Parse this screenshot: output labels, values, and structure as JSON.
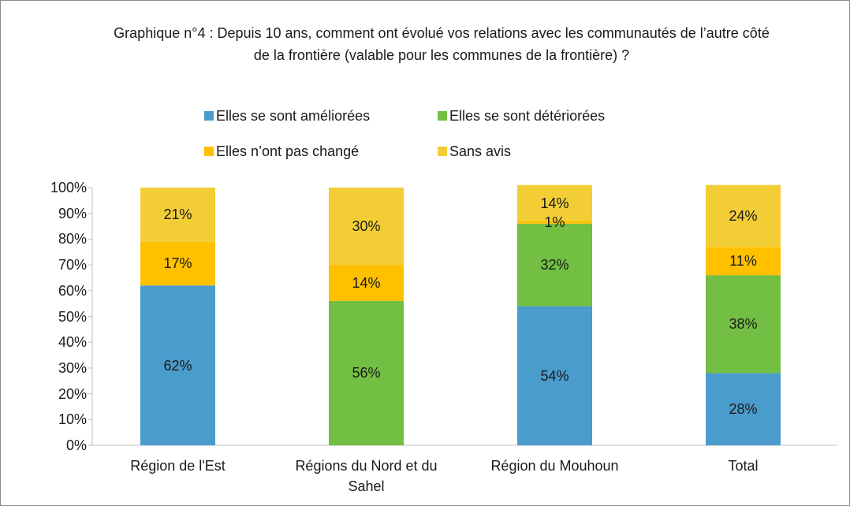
{
  "chart_data": {
    "type": "stacked_bar",
    "title": "Graphique n°4 : Depuis 10 ans, comment ont évolué vos relations avec les communautés de l’autre côté de la frontière (valable pour les communes de la frontière) ?",
    "categories": [
      "Région de l'Est",
      "Régions du Nord et du Sahel",
      "Région du Mouhoun",
      "Total"
    ],
    "series": [
      {
        "name": "Elles se sont améliorées",
        "color": "#4a9ccc",
        "values": [
          62,
          0,
          54,
          28
        ],
        "value_labels": [
          "62%",
          null,
          "54%",
          "28%"
        ]
      },
      {
        "name": "Elles se sont détériorées",
        "color": "#72bf44",
        "values": [
          0,
          56,
          32,
          38
        ],
        "value_labels": [
          null,
          "56%",
          "32%",
          "38%"
        ]
      },
      {
        "name": "Elles n’ont pas changé",
        "color": "#ffc000",
        "values": [
          17,
          14,
          1,
          11
        ],
        "value_labels": [
          "17%",
          "14%",
          "1%",
          "11%"
        ]
      },
      {
        "name": "Sans avis",
        "color": "#f2cd36",
        "values": [
          21,
          30,
          14,
          24
        ],
        "value_labels": [
          "21%",
          "30%",
          "14%",
          "24%"
        ]
      }
    ],
    "ylim": [
      0,
      100
    ],
    "yticks": [
      {
        "value": 0,
        "label": "0%"
      },
      {
        "value": 10,
        "label": "10%"
      },
      {
        "value": 20,
        "label": "20%"
      },
      {
        "value": 30,
        "label": "30%"
      },
      {
        "value": 40,
        "label": "40%"
      },
      {
        "value": 50,
        "label": "50%"
      },
      {
        "value": 60,
        "label": "60%"
      },
      {
        "value": 70,
        "label": "70%"
      },
      {
        "value": 80,
        "label": "80%"
      },
      {
        "value": 90,
        "label": "90%"
      },
      {
        "value": 100,
        "label": "100%"
      }
    ],
    "grid": false
  }
}
